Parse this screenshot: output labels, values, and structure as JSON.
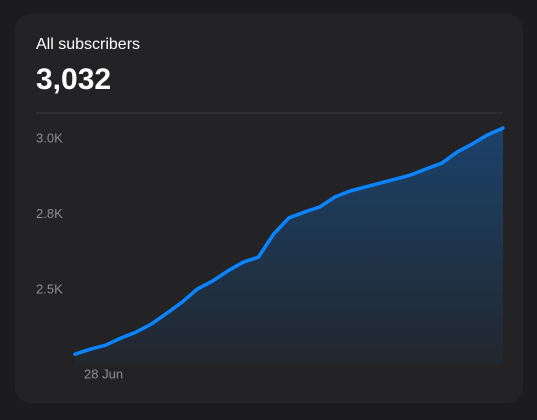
{
  "chart_data": {
    "type": "line",
    "title": "All subscribers",
    "headline": "3,032",
    "categories": [
      null,
      null,
      "28 Jun",
      null,
      null,
      null,
      null,
      null,
      null,
      null,
      null,
      null,
      null,
      null,
      null,
      null,
      null,
      null,
      null,
      null,
      null,
      null,
      null,
      null,
      null,
      null,
      null,
      null,
      null
    ],
    "series": [
      {
        "color": "#0a84ff",
        "values": [
          2359,
          2374,
          2386,
          2407,
          2425,
          2449,
          2481,
          2514,
          2553,
          2577,
          2607,
          2633,
          2648,
          2717,
          2765,
          2782,
          2797,
          2827,
          2845,
          2857,
          2869,
          2881,
          2893,
          2911,
          2928,
          2961,
          2985,
          3012,
          3032
        ]
      }
    ],
    "ylim": [
      2327,
      3077
    ],
    "yticks": [
      {
        "value": 3000,
        "label": "3.0K"
      },
      {
        "value": 2775,
        "label": "2.8K"
      },
      {
        "value": 2550,
        "label": "2.5K"
      }
    ]
  }
}
